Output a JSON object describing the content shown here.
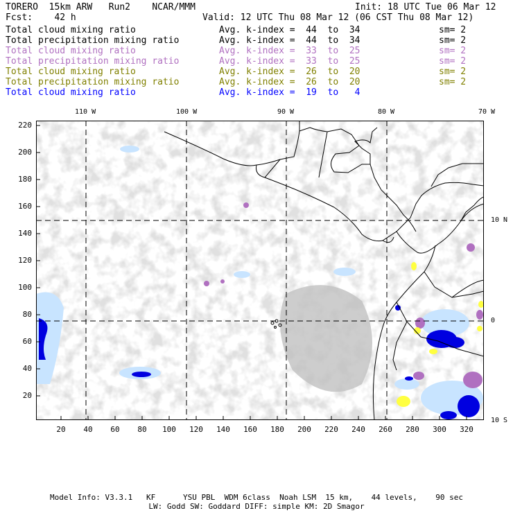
{
  "header": {
    "line1_left": "TORERO  15km ARW   Run2    NCAR/MMM",
    "line1_right": "Init: 18 UTC Tue 06 Mar 12",
    "line2_left": "Fcst:    42 h",
    "line2_right": "Valid: 12 UTC Thu 08 Mar 12 (06 CST Thu 08 Mar 12)"
  },
  "legend": [
    {
      "name": "Total cloud mixing ratio",
      "avg": "Avg. k-index =  44  to  34",
      "sm": "sm= 2",
      "color": "#000000"
    },
    {
      "name": "Total precipitation mixing ratio",
      "avg": "Avg. k-index =  44  to  34",
      "sm": "sm= 2",
      "color": "#000000"
    },
    {
      "name": "Total cloud mixing ratio",
      "avg": "Avg. k-index =  33  to  25",
      "sm": "sm= 2",
      "color": "#b070c0"
    },
    {
      "name": "Total precipitation mixing ratio",
      "avg": "Avg. k-index =  33  to  25",
      "sm": "sm= 2",
      "color": "#b070c0"
    },
    {
      "name": "Total cloud mixing ratio",
      "avg": "Avg. k-index =  26  to  20",
      "sm": "sm= 2",
      "color": "#808000"
    },
    {
      "name": "Total precipitation mixing ratio",
      "avg": "Avg. k-index =  26  to  20",
      "sm": "sm= 2",
      "color": "#808000"
    },
    {
      "name": "Total cloud mixing ratio",
      "avg": "Avg. k-index =  19  to   4",
      "sm": "",
      "color": "#0000ff"
    }
  ],
  "longitude_labels": [
    "110 W",
    "100 W",
    "90 W",
    "80 W",
    "70 W"
  ],
  "latitude_labels": [
    "10 N",
    "0",
    "10 S"
  ],
  "y_ticks": [
    "220",
    "200",
    "180",
    "160",
    "140",
    "120",
    "100",
    "80",
    "60",
    "40",
    "20"
  ],
  "x_ticks": [
    "20",
    "40",
    "60",
    "80",
    "100",
    "120",
    "140",
    "160",
    "180",
    "200",
    "220",
    "240",
    "260",
    "280",
    "300",
    "320"
  ],
  "footer": {
    "line1": "Model Info: V3.3.1   KF      YSU PBL  WDM 6class  Noah LSM  15 km,    44 levels,    90 sec",
    "line2": "LW: Godd SW: Goddard DIFF: simple KM: 2D Smagor"
  },
  "colors": {
    "cloud_gray": "#c0c0c0",
    "light_blue": "#c8e4ff",
    "blue": "#0000e0",
    "purple": "#b070c0",
    "yellow": "#ffff40",
    "coast": "#000000"
  }
}
